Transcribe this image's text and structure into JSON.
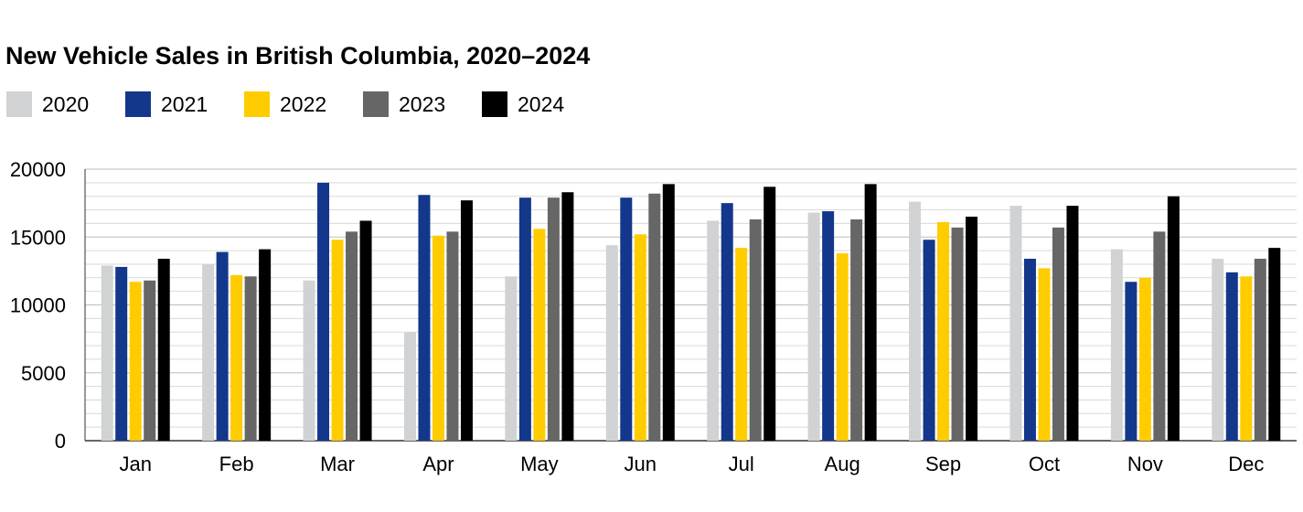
{
  "chart_data": {
    "type": "bar",
    "title": "New Vehicle Sales in British Columbia, 2020–2024",
    "xlabel": "",
    "ylabel": "",
    "categories": [
      "Jan",
      "Feb",
      "Mar",
      "Apr",
      "May",
      "Jun",
      "Jul",
      "Aug",
      "Sep",
      "Oct",
      "Nov",
      "Dec"
    ],
    "series": [
      {
        "name": "2020",
        "color": "#d0d2d4",
        "values": [
          12900,
          13000,
          11800,
          8000,
          12100,
          14400,
          16200,
          16800,
          17600,
          17300,
          14100,
          13400
        ]
      },
      {
        "name": "2021",
        "color": "#13378b",
        "values": [
          12800,
          13900,
          19000,
          18100,
          17900,
          17900,
          17500,
          16900,
          14800,
          13400,
          11700,
          12400
        ]
      },
      {
        "name": "2022",
        "color": "#ffcc00",
        "values": [
          11700,
          12200,
          14800,
          15100,
          15600,
          15200,
          14200,
          13800,
          16100,
          12700,
          12000,
          12100
        ]
      },
      {
        "name": "2023",
        "color": "#666666",
        "values": [
          11800,
          12100,
          15400,
          15400,
          17900,
          18200,
          16300,
          16300,
          15700,
          15700,
          15400,
          13400
        ]
      },
      {
        "name": "2024",
        "color": "#000000",
        "values": [
          13400,
          14100,
          16200,
          17700,
          18300,
          18900,
          18700,
          18900,
          16500,
          17300,
          18000,
          14200
        ]
      }
    ],
    "ylim": [
      0,
      20000
    ],
    "yticks": [
      0,
      5000,
      10000,
      15000,
      20000
    ],
    "minor_step": 1000,
    "grid": true,
    "legend": "top-left"
  }
}
